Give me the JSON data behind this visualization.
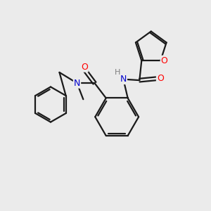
{
  "background_color": "#ebebeb",
  "atom_color_N": "#0000cd",
  "atom_color_O": "#ff0000",
  "atom_color_H": "#7f7f7f",
  "bond_color": "#1a1a1a",
  "bond_width": 1.6,
  "figsize": [
    3.0,
    3.0
  ],
  "dpi": 100,
  "xlim": [
    0,
    10
  ],
  "ylim": [
    0,
    10
  ]
}
